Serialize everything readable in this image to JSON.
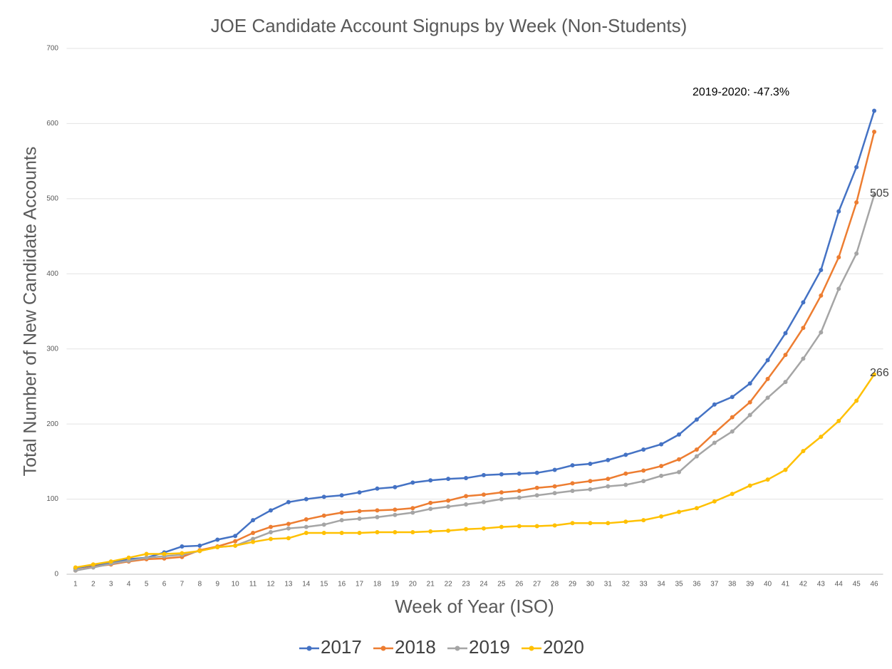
{
  "chart_data": {
    "type": "line",
    "title": "JOE Candidate Account Signups by Week  (Non-Students)",
    "x_label": "Week of Year (ISO)",
    "y_label": "Total Number of New Candidate Accounts",
    "annotation": "2019-2020: -47.3%",
    "categories": [
      "1",
      "2",
      "3",
      "4",
      "5",
      "6",
      "7",
      "8",
      "9",
      "10",
      "11",
      "12",
      "13",
      "14",
      "15",
      "16",
      "17",
      "18",
      "19",
      "20",
      "21",
      "22",
      "23",
      "24",
      "25",
      "26",
      "27",
      "28",
      "29",
      "30",
      "31",
      "32",
      "33",
      "34",
      "35",
      "36",
      "37",
      "38",
      "39",
      "40",
      "41",
      "42",
      "43",
      "44",
      "45",
      "46"
    ],
    "ylim": [
      0,
      700
    ],
    "yticks": [
      0,
      100,
      200,
      300,
      400,
      500,
      600,
      700
    ],
    "grid": true,
    "legend": "bottom",
    "series": [
      {
        "name": "2017",
        "color": "#4472c4",
        "values": [
          8,
          12,
          15,
          20,
          22,
          29,
          37,
          38,
          46,
          51,
          72,
          85,
          96,
          100,
          103,
          105,
          109,
          114,
          116,
          122,
          125,
          127,
          128,
          132,
          133,
          134,
          135,
          139,
          145,
          147,
          152,
          159,
          166,
          173,
          186,
          206,
          226,
          236,
          254,
          285,
          321,
          362,
          405,
          483,
          542,
          617
        ]
      },
      {
        "name": "2018",
        "color": "#ed7d31",
        "values": [
          5,
          10,
          13,
          17,
          20,
          21,
          23,
          32,
          37,
          44,
          55,
          63,
          67,
          73,
          78,
          82,
          84,
          85,
          86,
          88,
          95,
          98,
          104,
          106,
          109,
          111,
          115,
          117,
          121,
          124,
          127,
          134,
          138,
          144,
          153,
          166,
          188,
          209,
          229,
          260,
          292,
          328,
          371,
          422,
          495,
          589
        ]
      },
      {
        "name": "2019",
        "color": "#a5a5a5",
        "values": [
          5,
          9,
          14,
          18,
          22,
          24,
          26,
          31,
          36,
          38,
          47,
          56,
          61,
          63,
          66,
          72,
          74,
          76,
          79,
          82,
          87,
          90,
          93,
          96,
          100,
          102,
          105,
          108,
          111,
          113,
          117,
          119,
          124,
          131,
          136,
          157,
          175,
          190,
          212,
          235,
          256,
          287,
          322,
          380,
          427,
          505
        ]
      },
      {
        "name": "2020",
        "color": "#ffc000",
        "values": [
          9,
          13,
          17,
          22,
          27,
          27,
          28,
          31,
          36,
          38,
          43,
          47,
          48,
          55,
          55,
          55,
          55,
          56,
          56,
          56,
          57,
          58,
          60,
          61,
          63,
          64,
          64,
          65,
          68,
          68,
          68,
          70,
          72,
          77,
          83,
          88,
          97,
          107,
          118,
          126,
          139,
          164,
          183,
          204,
          231,
          266
        ]
      }
    ]
  }
}
